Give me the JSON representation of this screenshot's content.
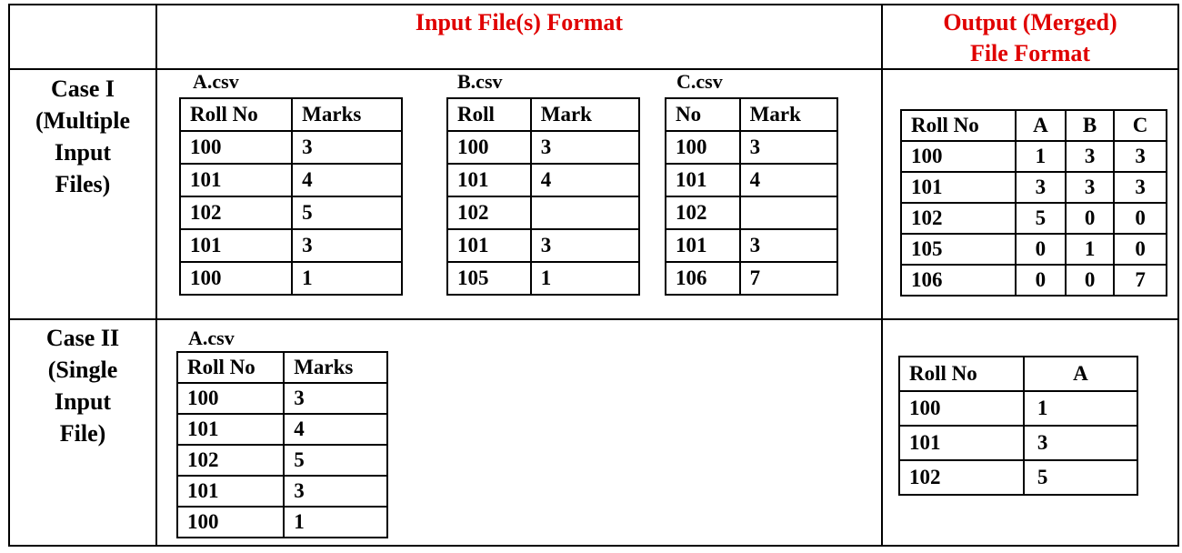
{
  "header": {
    "input_title": "Input File(s) Format",
    "output_title_line1": "Output (Merged)",
    "output_title_line2": "File Format"
  },
  "case1": {
    "label_lines": [
      "Case I",
      "(Multiple",
      "Input",
      "Files)"
    ],
    "inputs": [
      {
        "filename": "A.csv",
        "columns": [
          "Roll No",
          "Marks"
        ],
        "rows": [
          [
            "100",
            "3"
          ],
          [
            "101",
            "4"
          ],
          [
            "102",
            "5"
          ],
          [
            "101",
            "3"
          ],
          [
            "100",
            "1"
          ]
        ]
      },
      {
        "filename": "B.csv",
        "columns": [
          "Roll",
          "Mark"
        ],
        "rows": [
          [
            "100",
            "3"
          ],
          [
            "101",
            "4"
          ],
          [
            "102",
            ""
          ],
          [
            "101",
            "3"
          ],
          [
            "105",
            "1"
          ]
        ]
      },
      {
        "filename": "C.csv",
        "columns": [
          "No",
          "Mark"
        ],
        "rows": [
          [
            "100",
            "3"
          ],
          [
            "101",
            "4"
          ],
          [
            "102",
            ""
          ],
          [
            "101",
            "3"
          ],
          [
            "106",
            "7"
          ]
        ]
      }
    ],
    "output": {
      "columns": [
        "Roll No",
        "A",
        "B",
        "C"
      ],
      "rows": [
        [
          "100",
          "1",
          "3",
          "3"
        ],
        [
          "101",
          "3",
          "3",
          "3"
        ],
        [
          "102",
          "5",
          "0",
          "0"
        ],
        [
          "105",
          "0",
          "1",
          "0"
        ],
        [
          "106",
          "0",
          "0",
          "7"
        ]
      ]
    }
  },
  "case2": {
    "label_lines": [
      "Case II",
      "(Single",
      "Input",
      "File)"
    ],
    "input": {
      "filename": "A.csv",
      "columns": [
        "Roll No",
        "Marks"
      ],
      "rows": [
        [
          "100",
          "3"
        ],
        [
          "101",
          "4"
        ],
        [
          "102",
          "5"
        ],
        [
          "101",
          "3"
        ],
        [
          "100",
          "1"
        ]
      ]
    },
    "output": {
      "columns": [
        "Roll No",
        "A"
      ],
      "rows": [
        [
          "100",
          "1"
        ],
        [
          "101",
          "3"
        ],
        [
          "102",
          "5"
        ]
      ]
    }
  }
}
